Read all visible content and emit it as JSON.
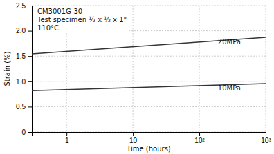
{
  "chart_data": {
    "type": "line",
    "title": [
      "CM3001G-30",
      "Test specimen ½ x ½ x 1\"",
      "110°C"
    ],
    "xlabel": "Time (hours)",
    "ylabel": "Strain (%)",
    "log": "x",
    "grid": true,
    "x": [
      0.3,
      1000
    ],
    "series": [
      {
        "color": "#333333",
        "values": [
          1.545,
          1.87
        ]
      },
      {
        "color": "#333333",
        "values": [
          0.815,
          0.955
        ]
      }
    ],
    "annotations": [
      {
        "text": "20MPa",
        "x": 190,
        "y": 1.77
      },
      {
        "text": "10MPa",
        "x": 190,
        "y": 0.855
      }
    ],
    "xlim": [
      0.3,
      1000
    ],
    "ylim": [
      0,
      2.5
    ],
    "xticks": [
      1,
      10,
      {
        "value": 100,
        "label": "10²"
      },
      {
        "value": 1000,
        "label": "10³"
      }
    ],
    "yticks": [
      0,
      0.5,
      {
        "value": 1.0,
        "label": "1.0"
      },
      1.5,
      {
        "value": 2.0,
        "label": "2.0"
      },
      2.5
    ]
  }
}
